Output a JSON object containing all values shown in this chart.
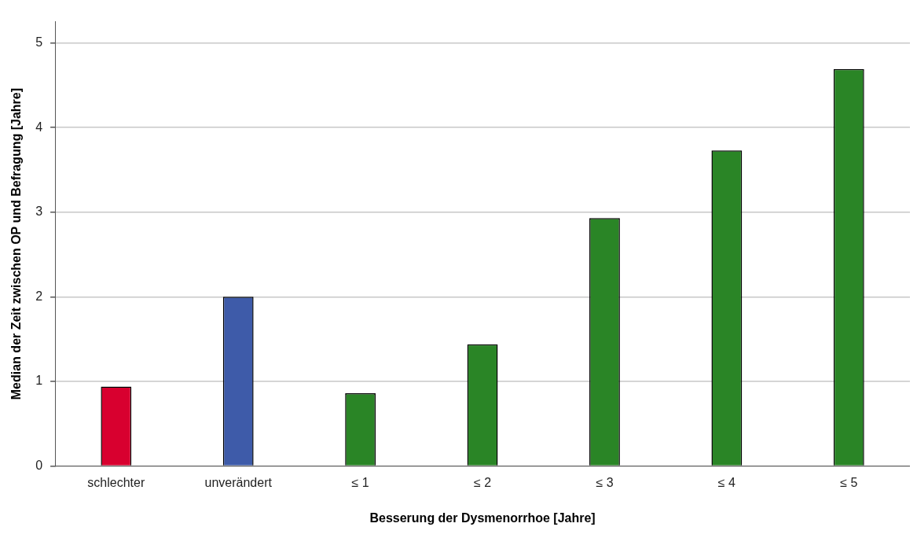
{
  "chart_data": {
    "type": "bar",
    "xlabel": "Besserung der Dysmenorrhoe [Jahre]",
    "ylabel": "Median der Zeit zwischen OP und Befragung [Jahre]",
    "categories": [
      "schlechter",
      "unverändert",
      "≤ 1",
      "≤ 2",
      "≤ 3",
      "≤ 4",
      "≤ 5"
    ],
    "values": [
      0.94,
      2.0,
      0.86,
      1.44,
      2.93,
      3.73,
      4.69
    ],
    "colors": [
      "#d8002f",
      "#3e5ba9",
      "#2a8526",
      "#2a8526",
      "#2a8526",
      "#2a8526",
      "#2a8526"
    ],
    "ylim": [
      0,
      5.25
    ],
    "yticks": [
      0,
      1,
      2,
      3,
      4,
      5
    ],
    "grid": "y",
    "legend": false
  }
}
